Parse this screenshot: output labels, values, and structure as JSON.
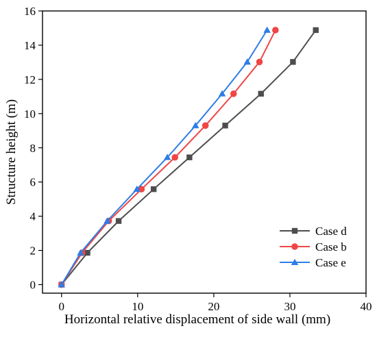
{
  "chart_data": {
    "type": "line",
    "xlabel": "Horizontal relative displacement of side wall (mm)",
    "ylabel": "Structure height (m)",
    "xlim": [
      -2.5,
      40
    ],
    "ylim": [
      -0.5,
      16
    ],
    "xticks": [
      "0",
      "10",
      "20",
      "30",
      "40"
    ],
    "xtick_values": [
      0,
      10,
      20,
      30,
      40
    ],
    "yticks": [
      "0",
      "2",
      "4",
      "6",
      "8",
      "10",
      "12",
      "14",
      "16"
    ],
    "ytick_values": [
      0,
      2,
      4,
      6,
      8,
      10,
      12,
      14,
      16
    ],
    "grid": false,
    "legend_position": "bottom-right",
    "series": [
      {
        "name": "Case d",
        "color": "#4d4d4d",
        "marker": "square",
        "x": [
          0,
          3.4,
          7.5,
          12.1,
          16.8,
          21.5,
          26.2,
          30.4,
          33.4
        ],
        "y": [
          0,
          1.86,
          3.72,
          5.58,
          7.44,
          9.3,
          11.16,
          13.02,
          14.88
        ]
      },
      {
        "name": "Case b",
        "color": "#f04545",
        "marker": "circle",
        "x": [
          0,
          2.7,
          6.2,
          10.5,
          14.9,
          18.9,
          22.6,
          26.0,
          28.1
        ],
        "y": [
          0,
          1.86,
          3.72,
          5.58,
          7.44,
          9.3,
          11.16,
          13.02,
          14.88
        ]
      },
      {
        "name": "Case e",
        "color": "#2e7de6",
        "marker": "triangle",
        "x": [
          0,
          2.5,
          6.0,
          9.9,
          13.9,
          17.6,
          21.1,
          24.4,
          27.0
        ],
        "y": [
          0,
          1.86,
          3.72,
          5.58,
          7.44,
          9.3,
          11.16,
          13.02,
          14.88
        ]
      }
    ]
  }
}
